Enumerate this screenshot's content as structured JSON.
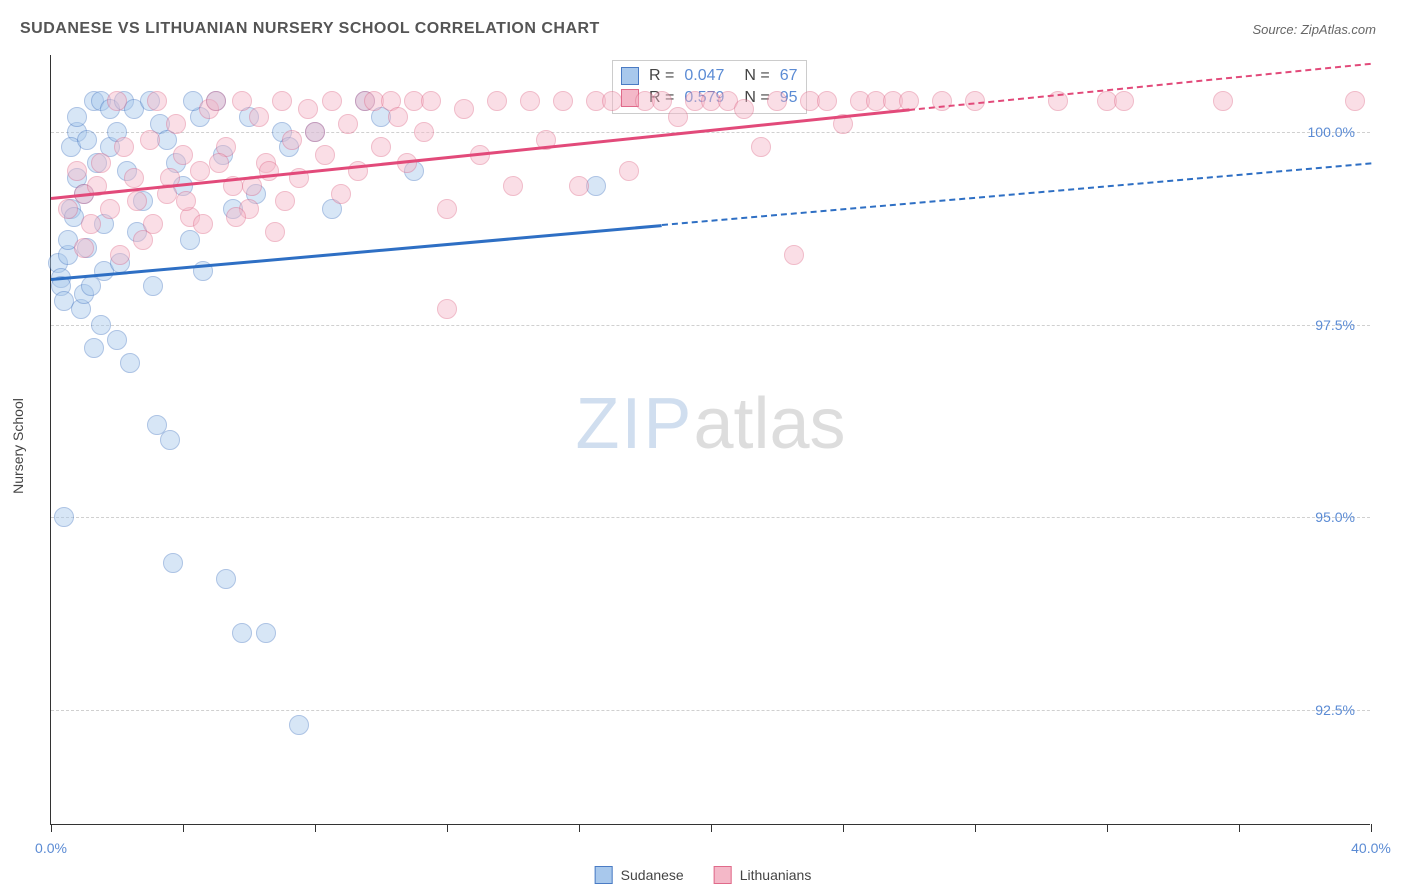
{
  "title": "SUDANESE VS LITHUANIAN NURSERY SCHOOL CORRELATION CHART",
  "source_prefix": "Source: ",
  "source": "ZipAtlas.com",
  "watermark_a": "ZIP",
  "watermark_b": "atlas",
  "y_axis_label": "Nursery School",
  "chart": {
    "type": "scatter",
    "xlim": [
      0,
      40
    ],
    "ylim": [
      91,
      101
    ],
    "x_ticks": [
      0,
      4,
      8,
      12,
      16,
      20,
      24,
      28,
      32,
      36,
      40
    ],
    "x_tick_labels": {
      "0": "0.0%",
      "40": "40.0%"
    },
    "y_ticks": [
      92.5,
      95.0,
      97.5,
      100.0
    ],
    "y_tick_labels": [
      "92.5%",
      "95.0%",
      "97.5%",
      "100.0%"
    ],
    "grid_color": "#d0d0d0",
    "background_color": "#ffffff",
    "point_radius": 10,
    "point_opacity": 0.45,
    "series": [
      {
        "name": "Sudanese",
        "fill": "#a8c8ec",
        "stroke": "#4a7bc4",
        "line_color": "#2e6fc4",
        "r_value": "0.047",
        "n_value": "67",
        "trend": {
          "x1": 0,
          "y1": 98.1,
          "x2_solid": 18.5,
          "y2_solid": 98.8,
          "x2": 40,
          "y2": 99.6
        },
        "points": [
          [
            0.2,
            98.3
          ],
          [
            0.3,
            98.1
          ],
          [
            0.3,
            98.0
          ],
          [
            0.4,
            97.8
          ],
          [
            0.5,
            98.4
          ],
          [
            0.5,
            98.6
          ],
          [
            0.6,
            99.0
          ],
          [
            0.7,
            98.9
          ],
          [
            0.8,
            100.0
          ],
          [
            0.8,
            99.4
          ],
          [
            0.9,
            97.7
          ],
          [
            1.0,
            99.2
          ],
          [
            1.0,
            97.9
          ],
          [
            1.1,
            98.5
          ],
          [
            1.2,
            98.0
          ],
          [
            1.3,
            100.4
          ],
          [
            1.3,
            97.2
          ],
          [
            1.4,
            99.6
          ],
          [
            1.5,
            100.4
          ],
          [
            1.5,
            97.5
          ],
          [
            1.6,
            98.2
          ],
          [
            1.8,
            100.3
          ],
          [
            1.8,
            99.8
          ],
          [
            2.0,
            100.0
          ],
          [
            2.0,
            97.3
          ],
          [
            2.2,
            100.4
          ],
          [
            2.3,
            99.5
          ],
          [
            2.5,
            100.3
          ],
          [
            2.6,
            98.7
          ],
          [
            2.8,
            99.1
          ],
          [
            3.0,
            100.4
          ],
          [
            3.2,
            96.2
          ],
          [
            3.3,
            100.1
          ],
          [
            3.5,
            99.9
          ],
          [
            3.6,
            96.0
          ],
          [
            3.7,
            94.4
          ],
          [
            4.0,
            99.3
          ],
          [
            4.2,
            98.6
          ],
          [
            4.5,
            100.2
          ],
          [
            5.0,
            100.4
          ],
          [
            5.2,
            99.7
          ],
          [
            5.3,
            94.2
          ],
          [
            5.8,
            93.5
          ],
          [
            6.0,
            100.2
          ],
          [
            6.5,
            93.5
          ],
          [
            7.0,
            100.0
          ],
          [
            7.5,
            92.3
          ],
          [
            8.0,
            100.0
          ],
          [
            8.5,
            99.0
          ],
          [
            9.5,
            100.4
          ],
          [
            10.0,
            100.2
          ],
          [
            11.0,
            99.5
          ],
          [
            0.4,
            95.0
          ],
          [
            0.6,
            99.8
          ],
          [
            0.8,
            100.2
          ],
          [
            1.1,
            99.9
          ],
          [
            1.6,
            98.8
          ],
          [
            2.1,
            98.3
          ],
          [
            2.4,
            97.0
          ],
          [
            3.1,
            98.0
          ],
          [
            3.8,
            99.6
          ],
          [
            4.3,
            100.4
          ],
          [
            4.6,
            98.2
          ],
          [
            5.5,
            99.0
          ],
          [
            6.2,
            99.2
          ],
          [
            7.2,
            99.8
          ],
          [
            16.5,
            99.3
          ]
        ]
      },
      {
        "name": "Lithuanians",
        "fill": "#f4b8c8",
        "stroke": "#e06a8a",
        "line_color": "#e24a7a",
        "r_value": "0.579",
        "n_value": "95",
        "trend": {
          "x1": 0,
          "y1": 99.15,
          "x2_solid": 26,
          "y2_solid": 100.3,
          "x2": 40,
          "y2": 100.9
        },
        "points": [
          [
            0.5,
            99.0
          ],
          [
            0.8,
            99.5
          ],
          [
            1.0,
            99.2
          ],
          [
            1.2,
            98.8
          ],
          [
            1.5,
            99.6
          ],
          [
            1.8,
            99.0
          ],
          [
            2.0,
            100.4
          ],
          [
            2.2,
            99.8
          ],
          [
            2.5,
            99.4
          ],
          [
            2.8,
            98.6
          ],
          [
            3.0,
            99.9
          ],
          [
            3.2,
            100.4
          ],
          [
            3.5,
            99.2
          ],
          [
            3.8,
            100.1
          ],
          [
            4.0,
            99.7
          ],
          [
            4.2,
            98.9
          ],
          [
            4.5,
            99.5
          ],
          [
            4.8,
            100.3
          ],
          [
            5.0,
            100.4
          ],
          [
            5.3,
            99.8
          ],
          [
            5.5,
            99.3
          ],
          [
            5.8,
            100.4
          ],
          [
            6.0,
            99.0
          ],
          [
            6.3,
            100.2
          ],
          [
            6.5,
            99.6
          ],
          [
            6.8,
            98.7
          ],
          [
            7.0,
            100.4
          ],
          [
            7.3,
            99.9
          ],
          [
            7.5,
            99.4
          ],
          [
            7.8,
            100.3
          ],
          [
            8.0,
            100.0
          ],
          [
            8.3,
            99.7
          ],
          [
            8.5,
            100.4
          ],
          [
            8.8,
            99.2
          ],
          [
            9.0,
            100.1
          ],
          [
            9.3,
            99.5
          ],
          [
            9.5,
            100.4
          ],
          [
            9.8,
            100.4
          ],
          [
            10.0,
            99.8
          ],
          [
            10.3,
            100.4
          ],
          [
            10.5,
            100.2
          ],
          [
            10.8,
            99.6
          ],
          [
            11.0,
            100.4
          ],
          [
            11.3,
            100.0
          ],
          [
            11.5,
            100.4
          ],
          [
            12.0,
            97.7
          ],
          [
            12.0,
            99.0
          ],
          [
            12.5,
            100.3
          ],
          [
            13.0,
            99.7
          ],
          [
            13.5,
            100.4
          ],
          [
            14.0,
            99.3
          ],
          [
            14.5,
            100.4
          ],
          [
            15.0,
            99.9
          ],
          [
            15.5,
            100.4
          ],
          [
            16.0,
            99.3
          ],
          [
            16.5,
            100.4
          ],
          [
            17.0,
            100.4
          ],
          [
            17.5,
            99.5
          ],
          [
            18.0,
            100.4
          ],
          [
            18.5,
            100.4
          ],
          [
            19.0,
            100.2
          ],
          [
            19.5,
            100.4
          ],
          [
            20.0,
            100.4
          ],
          [
            20.5,
            100.4
          ],
          [
            21.0,
            100.3
          ],
          [
            21.5,
            99.8
          ],
          [
            22.0,
            100.4
          ],
          [
            22.5,
            98.4
          ],
          [
            23.0,
            100.4
          ],
          [
            23.5,
            100.4
          ],
          [
            24.0,
            100.1
          ],
          [
            24.5,
            100.4
          ],
          [
            25.0,
            100.4
          ],
          [
            25.5,
            100.4
          ],
          [
            26.0,
            100.4
          ],
          [
            27.0,
            100.4
          ],
          [
            28.0,
            100.4
          ],
          [
            30.5,
            100.4
          ],
          [
            32.0,
            100.4
          ],
          [
            32.5,
            100.4
          ],
          [
            35.5,
            100.4
          ],
          [
            39.5,
            100.4
          ],
          [
            1.0,
            98.5
          ],
          [
            1.4,
            99.3
          ],
          [
            2.1,
            98.4
          ],
          [
            2.6,
            99.1
          ],
          [
            3.1,
            98.8
          ],
          [
            3.6,
            99.4
          ],
          [
            4.1,
            99.1
          ],
          [
            4.6,
            98.8
          ],
          [
            5.1,
            99.6
          ],
          [
            5.6,
            98.9
          ],
          [
            6.1,
            99.3
          ],
          [
            6.6,
            99.5
          ],
          [
            7.1,
            99.1
          ]
        ]
      }
    ]
  },
  "legend_title_sudanese": "Sudanese",
  "legend_title_lithuanians": "Lithuanians",
  "stats_labels": {
    "r": "R =",
    "n": "N ="
  }
}
